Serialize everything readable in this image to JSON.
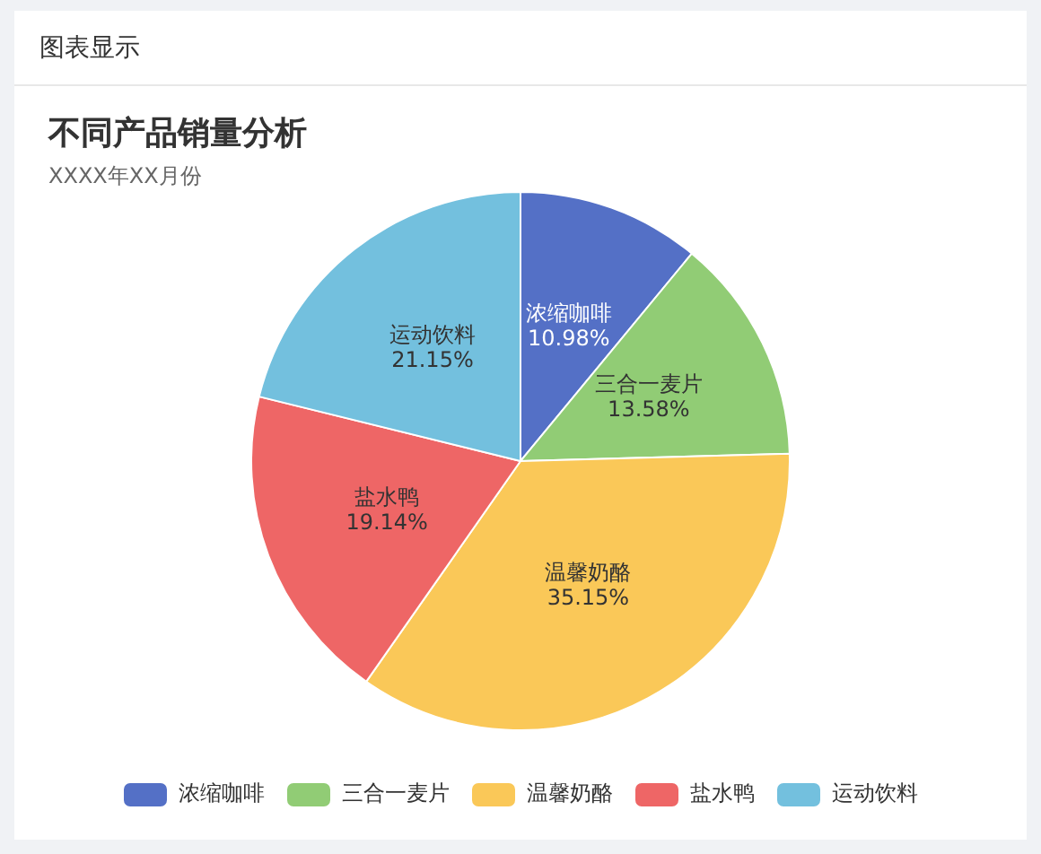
{
  "chart_data": {
    "type": "pie",
    "title": "不同产品销量分析",
    "subtitle": "XXXX年XX月份",
    "annotations": [
      "图表显示"
    ],
    "categories": [
      "浓缩咖啡",
      "三合一麦片",
      "温馨奶酪",
      "盐水鸭",
      "运动饮料"
    ],
    "values": [
      10.98,
      13.58,
      35.15,
      19.14,
      21.15
    ],
    "value_labels": [
      "10.98%",
      "13.58%",
      "35.15%",
      "19.14%",
      "21.15%"
    ],
    "colors": [
      "#5470c6",
      "#91cc75",
      "#fac858",
      "#ee6666",
      "#73c0de"
    ],
    "legend": "bottom"
  }
}
